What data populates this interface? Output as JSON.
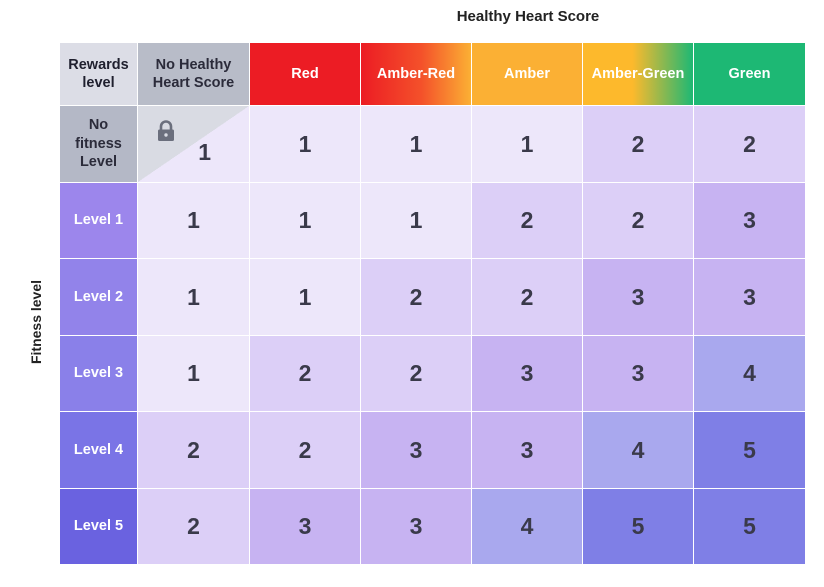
{
  "chart_data": {
    "type": "heatmap",
    "title": "Healthy Heart Score",
    "ylabel": "Fitness level",
    "corner_label": "Rewards level",
    "columns": [
      "No Healthy Heart Score",
      "Red",
      "Amber-Red",
      "Amber",
      "Amber-Green",
      "Green"
    ],
    "rows": [
      "No fitness Level",
      "Level 1",
      "Level 2",
      "Level 3",
      "Level 4",
      "Level 5"
    ],
    "values": [
      [
        1,
        1,
        1,
        1,
        2,
        2
      ],
      [
        1,
        1,
        1,
        2,
        2,
        3
      ],
      [
        1,
        1,
        2,
        2,
        3,
        3
      ],
      [
        1,
        2,
        2,
        3,
        3,
        4
      ],
      [
        2,
        2,
        3,
        3,
        4,
        5
      ],
      [
        2,
        3,
        3,
        4,
        5,
        5
      ]
    ],
    "header_colors": {
      "corner": "#dcdde6",
      "no_score": "#b8bcc8",
      "red": "#ec1c24",
      "amber_red": "#f4512a",
      "amber": "#fbb034",
      "amber_green": "#fdb92c",
      "green": "#1db874"
    },
    "level_colors": {
      "1": "#ede7fa",
      "2": "#dccff7",
      "3": "#c7b3f2",
      "4": "#a9a8ee",
      "5": "#7f7fe6"
    },
    "row_header_colors": [
      "#b4b8c6",
      "#9c86ec",
      "#9283ea",
      "#8a80e9",
      "#7a74e6",
      "#6a62e0"
    ],
    "no_fitness_no_score_locked": true
  }
}
